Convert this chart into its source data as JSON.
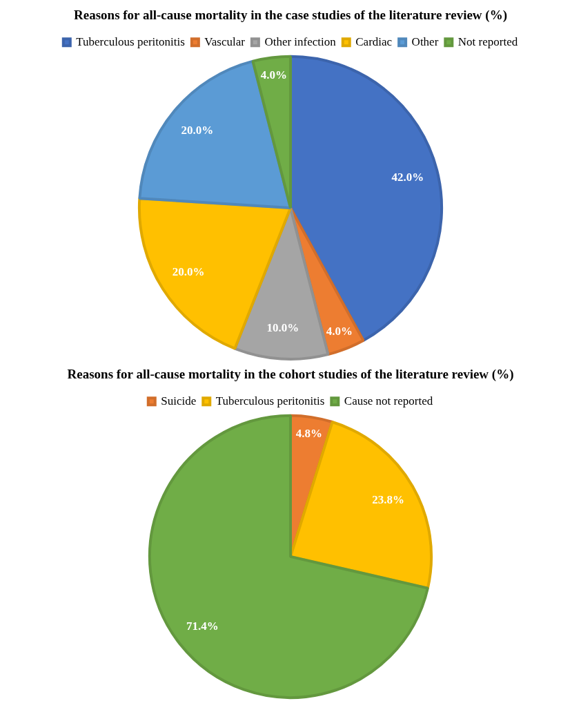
{
  "chart_data": [
    {
      "type": "pie",
      "title": "Reasons for all-cause mortality in the case studies of the literature review (%)",
      "categories": [
        "Tuberculous peritonitis",
        "Vascular",
        "Other infection",
        "Cardiac",
        "Other",
        "Not reported"
      ],
      "values": [
        42.0,
        4.0,
        10.0,
        20.0,
        20.0,
        4.0
      ],
      "value_labels": [
        "42.0%",
        "4.0%",
        "10.0%",
        "20.0%",
        "20.0%",
        "4.0%"
      ],
      "colors": [
        "#4472c4",
        "#ed7d31",
        "#a5a5a5",
        "#ffc000",
        "#5b9bd5",
        "#70ad47"
      ],
      "legend": "top"
    },
    {
      "type": "pie",
      "title": "Reasons for all-cause mortality in the cohort studies of the literature review (%)",
      "categories": [
        "Suicide",
        "Tuberculous peritonitis",
        "Cause not reported"
      ],
      "values": [
        4.8,
        23.8,
        71.4
      ],
      "value_labels": [
        "4.8%",
        "23.8%",
        "71.4%"
      ],
      "colors": [
        "#ed7d31",
        "#ffc000",
        "#70ad47"
      ],
      "legend": "top"
    }
  ]
}
